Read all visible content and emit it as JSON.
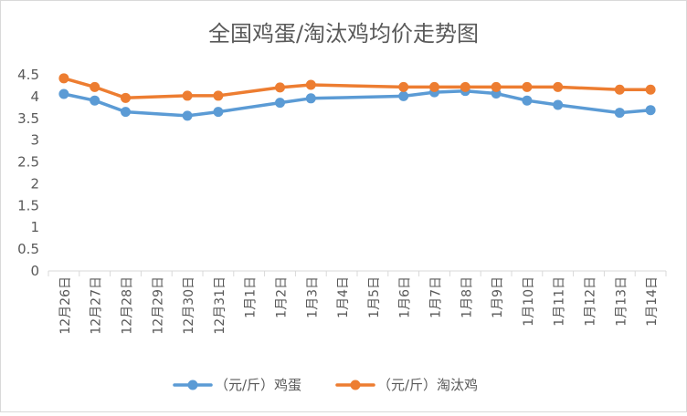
{
  "chart_data": {
    "type": "line",
    "title": "全国鸡蛋/淘汰鸡均价走势图",
    "xlabel": "",
    "ylabel": "",
    "categories": [
      "12月26日",
      "12月27日",
      "12月28日",
      "12月29日",
      "12月30日",
      "12月31日",
      "1月1日",
      "1月2日",
      "1月3日",
      "1月4日",
      "1月5日",
      "1月6日",
      "1月7日",
      "1月8日",
      "1月9日",
      "1月10日",
      "1月11日",
      "1月12日",
      "1月13日",
      "1月14日"
    ],
    "ylim": [
      0,
      4.5
    ],
    "yticks": [
      "0",
      "0.5",
      "1",
      "1.5",
      "2",
      "2.5",
      "3",
      "3.5",
      "4",
      "4.5"
    ],
    "grid": false,
    "legend_position": "bottom",
    "series": [
      {
        "name": "（元/斤）鸡蛋",
        "color": "#5b9bd5",
        "values": [
          4.06,
          3.91,
          3.65,
          null,
          3.56,
          3.65,
          null,
          3.86,
          3.96,
          null,
          null,
          4.01,
          4.1,
          4.13,
          4.07,
          3.91,
          3.81,
          null,
          3.63,
          3.69
        ]
      },
      {
        "name": "（元/斤）淘汰鸡",
        "color": "#ed7d31",
        "values": [
          4.42,
          4.22,
          3.97,
          null,
          4.02,
          4.02,
          null,
          4.21,
          4.27,
          null,
          null,
          4.22,
          4.22,
          4.22,
          4.22,
          4.22,
          4.22,
          null,
          4.16,
          4.16
        ]
      }
    ]
  }
}
